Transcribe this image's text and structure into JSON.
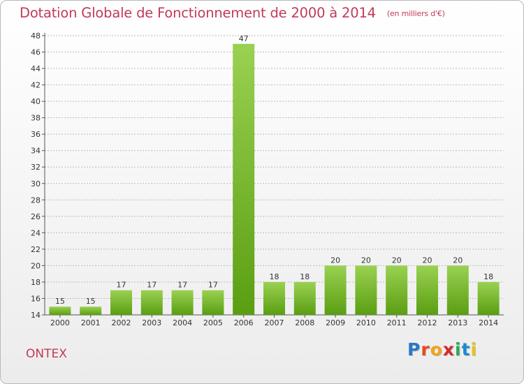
{
  "header": {
    "title": "Dotation Globale de Fonctionnement de 2000 à 2014",
    "subtitle": "(en milliers d'€)"
  },
  "footer": {
    "commune": "ONTEX",
    "logo_letters": [
      "P",
      "r",
      "o",
      "x",
      "i",
      "t",
      "i"
    ],
    "logo_colors": [
      "#2a78c8",
      "#e84a1a",
      "#f2a31b",
      "#d42a2a",
      "#2fa84f",
      "#1a8ad4",
      "#e8c21b"
    ]
  },
  "colors": {
    "bar_top": "#9ad152",
    "bar_bottom": "#5a9e12",
    "grid": "#bbbbbb",
    "accent": "#c23a5a"
  },
  "chart_data": {
    "type": "bar",
    "title": "Dotation Globale de Fonctionnement de 2000 à 2014",
    "unit": "(en milliers d'€)",
    "categories": [
      "2000",
      "2001",
      "2002",
      "2003",
      "2004",
      "2005",
      "2006",
      "2007",
      "2008",
      "2009",
      "2010",
      "2011",
      "2012",
      "2013",
      "2014"
    ],
    "values": [
      15,
      15,
      17,
      17,
      17,
      17,
      47,
      18,
      18,
      20,
      20,
      20,
      20,
      20,
      18
    ],
    "ylim": [
      14,
      48
    ],
    "yticks": [
      14,
      16,
      18,
      20,
      22,
      24,
      26,
      28,
      30,
      32,
      34,
      36,
      38,
      40,
      42,
      44,
      46,
      48
    ],
    "grid": true,
    "xlabel": "",
    "ylabel": ""
  }
}
